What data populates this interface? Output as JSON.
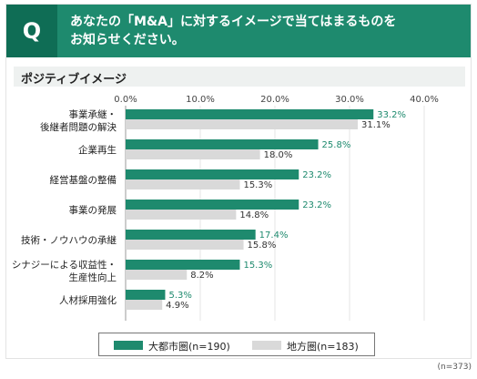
{
  "header": {
    "badge": "Q",
    "question_line1": "あなたの「M&A」に対するイメージで当てはまるものを",
    "question_line2": "お知らせください。"
  },
  "section": {
    "title": "ポジティブイメージ"
  },
  "legend": {
    "urban": "大都市圏(n=190)",
    "regional": "地方圏(n=183)"
  },
  "note": "(n=373)",
  "colors": {
    "urban": "#1e8a6e",
    "regional": "#d9d9d9",
    "header": "#1e8a6e"
  },
  "chart_data": {
    "type": "bar",
    "orientation": "horizontal",
    "xlim": [
      0,
      40
    ],
    "ticks": [
      "0.0%",
      "10.0%",
      "20.0%",
      "30.0%",
      "40.0%"
    ],
    "categories": [
      [
        "事業承継・",
        "後継者問題の解決"
      ],
      [
        "企業再生"
      ],
      [
        "経営基盤の整備"
      ],
      [
        "事業の発展"
      ],
      [
        "技術・ノウハウの承継"
      ],
      [
        "シナジーによる収益性・",
        "生産性向上"
      ],
      [
        "人材採用強化"
      ]
    ],
    "series": [
      {
        "name": "大都市圏(n=190)",
        "values": [
          33.2,
          25.8,
          23.2,
          23.2,
          17.4,
          15.3,
          5.3
        ],
        "labels": [
          "33.2%",
          "25.8%",
          "23.2%",
          "23.2%",
          "17.4%",
          "15.3%",
          "5.3%"
        ]
      },
      {
        "name": "地方圏(n=183)",
        "values": [
          31.1,
          18.0,
          15.3,
          14.8,
          15.8,
          8.2,
          4.9
        ],
        "labels": [
          "31.1%",
          "18.0%",
          "15.3%",
          "14.8%",
          "15.8%",
          "8.2%",
          "4.9%"
        ]
      }
    ]
  }
}
